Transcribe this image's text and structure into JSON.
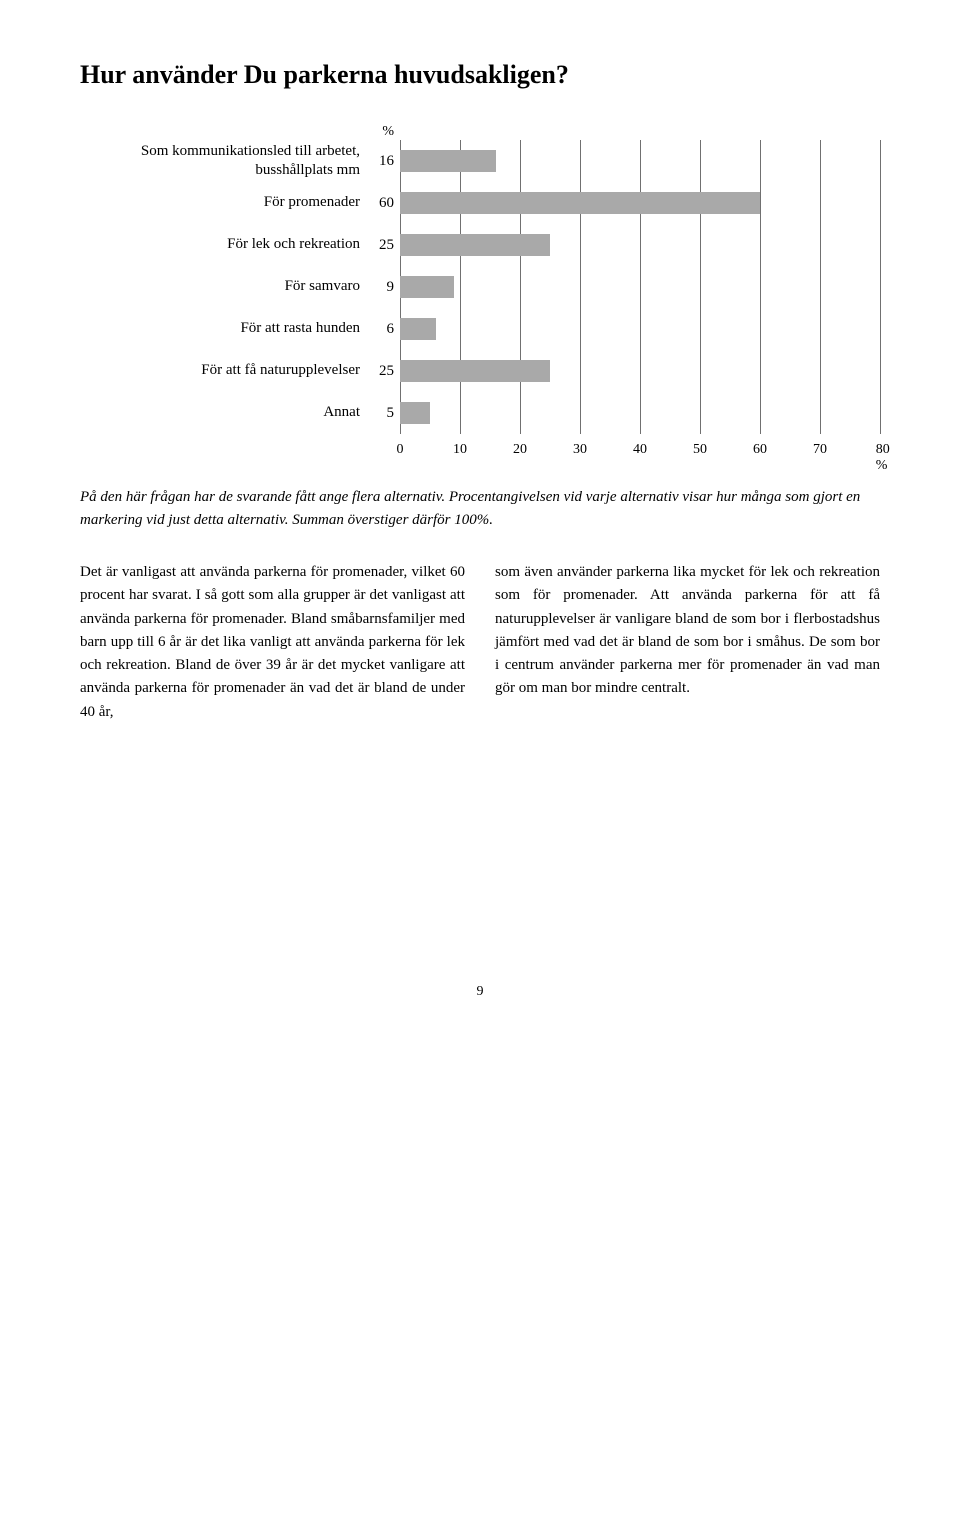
{
  "title": "Hur använder Du parkerna huvudsakligen?",
  "chart": {
    "type": "bar",
    "percent_symbol": "%",
    "bar_color": "#a9a9a9",
    "gridline_color": "#707070",
    "rows": [
      {
        "label": "Som kommunikationsled till arbetet, busshållplats mm",
        "value": 16
      },
      {
        "label": "För promenader",
        "value": 60
      },
      {
        "label": "För lek och rekreation",
        "value": 25
      },
      {
        "label": "För samvaro",
        "value": 9
      },
      {
        "label": "För att rasta hunden",
        "value": 6
      },
      {
        "label": "För att få naturupplevelser",
        "value": 25
      },
      {
        "label": "Annat",
        "value": 5
      }
    ],
    "x_ticks": [
      "0",
      "10",
      "20",
      "30",
      "40",
      "50",
      "60",
      "70",
      "80 %"
    ],
    "x_max": 80
  },
  "caption": "På den här frågan har de svarande fått ange flera alternativ. Procentangivelsen vid varje alternativ visar hur många som gjort en markering vid just detta alternativ. Summan överstiger därför 100%.",
  "body": {
    "col1": "Det är vanligast att använda parkerna för promenader, vilket 60 procent har svarat. I så gott som alla grupper är det vanligast att använda parkerna för promenader. Bland småbarnsfamiljer med barn upp till 6 år är det lika vanligt att använda parkerna för lek och rekreation. Bland de över 39 år är det mycket vanligare att använda parkerna för promenader än vad det är bland de under 40 år,",
    "col2": "som även använder parkerna lika mycket för lek och rekreation som för promenader. Att använda parkerna för att få naturupplevelser är vanligare bland de som bor i flerbostadshus jämfört med vad det är bland de som bor i småhus. De som bor i centrum använder parkerna mer för promenader än vad man gör om man bor mindre centralt."
  },
  "page_number": "9"
}
